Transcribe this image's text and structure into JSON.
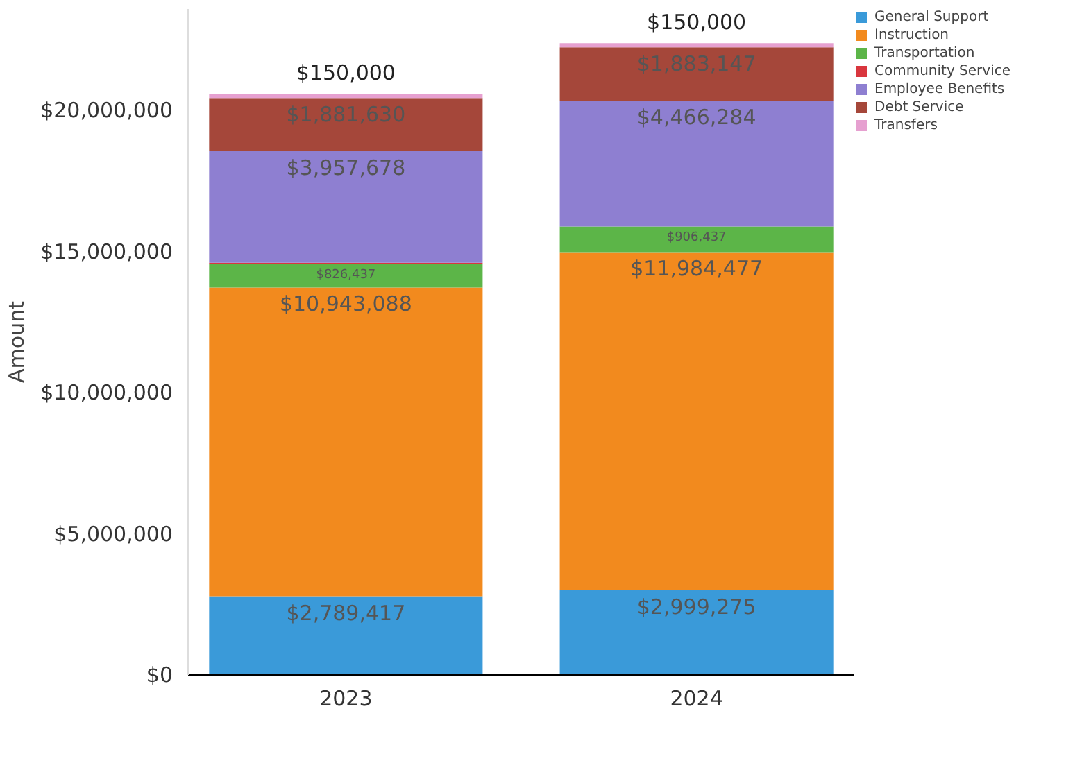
{
  "chart_data": {
    "type": "bar",
    "stacked": true,
    "ylabel": "Amount",
    "categories": [
      "2023",
      "2024"
    ],
    "ylim": [
      0,
      23600000
    ],
    "yticks": [
      {
        "value": 0,
        "label": "$0"
      },
      {
        "value": 5000000,
        "label": "$5,000,000"
      },
      {
        "value": 10000000,
        "label": "$10,000,000"
      },
      {
        "value": 15000000,
        "label": "$15,000,000"
      },
      {
        "value": 20000000,
        "label": "$20,000,000"
      }
    ],
    "grid": false,
    "legend": "top right",
    "series": [
      {
        "name": "General Support",
        "color": "#3a9ad9",
        "values": [
          2789417,
          2999275
        ],
        "value_labels": [
          "$2,789,417",
          "$2,999,275"
        ]
      },
      {
        "name": "Instruction",
        "color": "#f28a1e",
        "values": [
          10943088,
          11984477
        ],
        "value_labels": [
          "$10,943,088",
          "$11,984,477"
        ]
      },
      {
        "name": "Transportation",
        "color": "#5cb548",
        "values": [
          826437,
          906437
        ],
        "value_labels": [
          "$826,437",
          "$906,437"
        ]
      },
      {
        "name": "Community Service",
        "color": "#d9363e",
        "values": [
          50000,
          0
        ],
        "value_labels": [
          null,
          null
        ]
      },
      {
        "name": "Employee Benefits",
        "color": "#8e7fd1",
        "values": [
          3957678,
          4466284
        ],
        "value_labels": [
          "$3,957,678",
          "$4,466,284"
        ]
      },
      {
        "name": "Debt Service",
        "color": "#a5473a",
        "values": [
          1881630,
          1883147
        ],
        "value_labels": [
          "$1,881,630",
          "$1,883,147"
        ]
      },
      {
        "name": "Transfers",
        "color": "#e6a0d0",
        "values": [
          150000,
          150000
        ],
        "value_labels": [
          "$150,000",
          "$150,000"
        ]
      }
    ]
  }
}
